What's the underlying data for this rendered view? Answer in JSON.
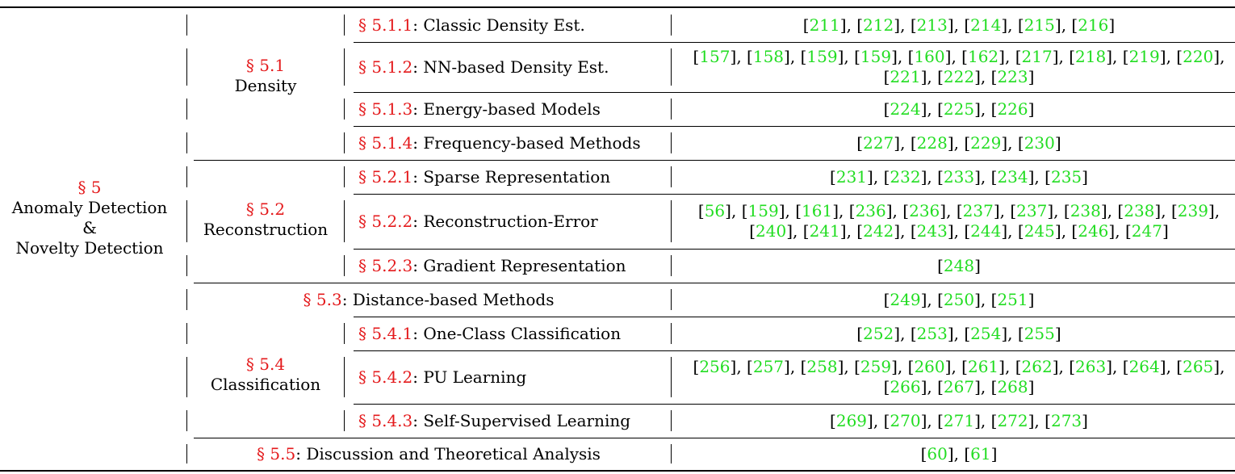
{
  "root": {
    "sec": "§ 5",
    "lines": [
      "Anomaly Detection",
      "&",
      "Novelty Detection"
    ]
  },
  "groups": [
    {
      "sec": "§ 5.1",
      "name": "Density"
    },
    {
      "sec": "§ 5.2",
      "name": "Reconstruction"
    },
    {
      "sec": "§ 5.4",
      "name": "Classification"
    }
  ],
  "rows": [
    {
      "sec": "§ 5.1.1",
      "title": "Classic Density Est.",
      "refs": [
        "211",
        "212",
        "213",
        "214",
        "215",
        "216"
      ]
    },
    {
      "sec": "§ 5.1.2",
      "title": "NN-based Density Est.",
      "refs": [
        "157",
        "158",
        "159",
        "159",
        "160",
        "162",
        "217",
        "218",
        "219",
        "220",
        "221",
        "222",
        "223"
      ],
      "split": 10
    },
    {
      "sec": "§ 5.1.3",
      "title": "Energy-based Models",
      "refs": [
        "224",
        "225",
        "226"
      ]
    },
    {
      "sec": "§ 5.1.4",
      "title": "Frequency-based Methods",
      "refs": [
        "227",
        "228",
        "229",
        "230"
      ]
    },
    {
      "sec": "§ 5.2.1",
      "title": "Sparse Representation",
      "refs": [
        "231",
        "232",
        "233",
        "234",
        "235"
      ]
    },
    {
      "sec": "§ 5.2.2",
      "title": "Reconstruction-Error",
      "refs": [
        "56",
        "159",
        "161",
        "236",
        "236",
        "237",
        "237",
        "238",
        "238",
        "239",
        "240",
        "241",
        "242",
        "243",
        "244",
        "245",
        "246",
        "247"
      ],
      "split": 10
    },
    {
      "sec": "§ 5.2.3",
      "title": "Gradient Representation",
      "refs": [
        "248"
      ]
    },
    {
      "sec": "§ 5.3",
      "title": "Distance-based Methods",
      "refs": [
        "249",
        "250",
        "251"
      ]
    },
    {
      "sec": "§ 5.4.1",
      "title": "One-Class Classification",
      "refs": [
        "252",
        "253",
        "254",
        "255"
      ]
    },
    {
      "sec": "§ 5.4.2",
      "title": "PU Learning",
      "refs": [
        "256",
        "257",
        "258",
        "259",
        "260",
        "261",
        "262",
        "263",
        "264",
        "265",
        "266",
        "267",
        "268"
      ],
      "split": 10
    },
    {
      "sec": "§ 5.4.3",
      "title": "Self-Supervised Learning",
      "refs": [
        "269",
        "270",
        "271",
        "272",
        "273"
      ]
    },
    {
      "sec": "§ 5.5",
      "title": "Discussion and Theoretical Analysis",
      "refs": [
        "60",
        "61"
      ]
    }
  ],
  "colors": {
    "section": "#e41a1c",
    "citation": "#22dd22"
  }
}
